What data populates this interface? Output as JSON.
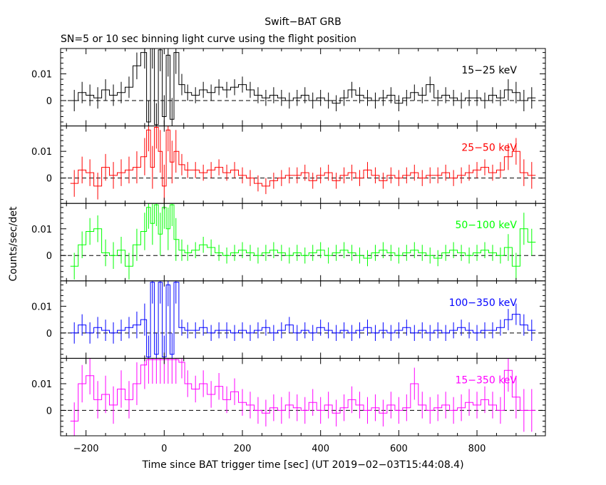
{
  "title": "Swift−BAT GRB",
  "subtitle": "SN=5 or 10 sec binning light curve using the flight position",
  "xlabel": "Time since BAT trigger time [sec] (UT 2019−02−03T15:44:08.4)",
  "ylabel": "Counts/sec/det",
  "chart_data": {
    "type": "line",
    "x_range": [
      -265,
      975
    ],
    "y_range": [
      -0.0095,
      0.0195
    ],
    "x_ticks": [
      -200,
      0,
      200,
      400,
      600,
      800
    ],
    "x_tick_labels": [
      "−200",
      "0",
      "200",
      "400",
      "600",
      "800"
    ],
    "y_ticks": [
      0,
      0.01
    ],
    "y_tick_labels": [
      "0",
      "0.01"
    ],
    "zero_line": "dashed",
    "grid": false,
    "panels": [
      {
        "name": "15−25 keV",
        "color": "#000000",
        "x": [
          -230,
          -210,
          -190,
          -170,
          -150,
          -130,
          -110,
          -90,
          -70,
          -50,
          -40,
          -30,
          -20,
          -10,
          0,
          10,
          20,
          30,
          45,
          60,
          80,
          100,
          120,
          140,
          160,
          180,
          200,
          220,
          240,
          260,
          280,
          300,
          320,
          340,
          360,
          380,
          400,
          420,
          440,
          460,
          480,
          500,
          520,
          540,
          560,
          580,
          600,
          620,
          640,
          660,
          680,
          700,
          720,
          740,
          760,
          780,
          800,
          820,
          840,
          860,
          880,
          900,
          920,
          940
        ],
        "y": [
          0.0,
          0.003,
          0.002,
          0.001,
          0.004,
          0.002,
          0.003,
          0.005,
          0.013,
          0.018,
          -0.008,
          0.02,
          -0.009,
          0.019,
          -0.006,
          0.017,
          -0.007,
          0.018,
          0.006,
          0.003,
          0.002,
          0.004,
          0.003,
          0.005,
          0.004,
          0.005,
          0.006,
          0.004,
          0.002,
          0.001,
          0.002,
          0.001,
          0.0,
          0.001,
          0.002,
          0.0,
          0.001,
          0.0,
          -0.001,
          0.001,
          0.004,
          0.002,
          0.001,
          0.0,
          0.001,
          0.002,
          -0.001,
          0.001,
          0.003,
          0.002,
          0.006,
          0.001,
          0.002,
          0.001,
          0.0,
          0.001,
          0.001,
          0.0,
          0.002,
          0.001,
          0.004,
          0.003,
          0.0,
          0.001
        ],
        "err": [
          0.004,
          0.004,
          0.004,
          0.004,
          0.004,
          0.004,
          0.004,
          0.004,
          0.005,
          0.006,
          0.008,
          0.008,
          0.008,
          0.008,
          0.008,
          0.008,
          0.008,
          0.008,
          0.004,
          0.003,
          0.003,
          0.003,
          0.003,
          0.003,
          0.003,
          0.003,
          0.003,
          0.003,
          0.003,
          0.003,
          0.003,
          0.003,
          0.003,
          0.003,
          0.003,
          0.003,
          0.003,
          0.003,
          0.003,
          0.003,
          0.003,
          0.003,
          0.003,
          0.003,
          0.003,
          0.003,
          0.003,
          0.003,
          0.003,
          0.003,
          0.003,
          0.003,
          0.003,
          0.003,
          0.003,
          0.003,
          0.003,
          0.003,
          0.003,
          0.003,
          0.004,
          0.004,
          0.004,
          0.004
        ]
      },
      {
        "name": "25−50 keV",
        "color": "#ff0000",
        "x": [
          -230,
          -210,
          -190,
          -170,
          -150,
          -130,
          -110,
          -90,
          -70,
          -50,
          -40,
          -30,
          -20,
          -10,
          0,
          10,
          20,
          30,
          45,
          60,
          80,
          100,
          120,
          140,
          160,
          180,
          200,
          220,
          240,
          260,
          280,
          300,
          320,
          340,
          360,
          380,
          400,
          420,
          440,
          460,
          480,
          500,
          520,
          540,
          560,
          580,
          600,
          620,
          640,
          660,
          680,
          700,
          720,
          740,
          760,
          780,
          800,
          820,
          840,
          860,
          880,
          900,
          920,
          940
        ],
        "y": [
          -0.002,
          0.003,
          0.002,
          -0.003,
          0.004,
          0.001,
          0.002,
          0.003,
          0.004,
          0.008,
          0.018,
          0.004,
          0.019,
          0.01,
          -0.003,
          0.018,
          0.006,
          0.01,
          0.005,
          0.003,
          0.003,
          0.002,
          0.003,
          0.004,
          0.002,
          0.003,
          0.001,
          0.0,
          -0.002,
          -0.003,
          -0.001,
          0.0,
          0.001,
          0.001,
          0.002,
          -0.001,
          0.001,
          0.002,
          -0.001,
          0.001,
          0.002,
          0.0,
          0.003,
          0.001,
          -0.001,
          0.001,
          0.0,
          0.001,
          0.002,
          0.0,
          0.001,
          0.001,
          0.002,
          0.0,
          0.001,
          0.002,
          0.003,
          0.004,
          0.002,
          0.003,
          0.008,
          0.01,
          0.002,
          0.001
        ],
        "err": [
          0.005,
          0.005,
          0.005,
          0.005,
          0.005,
          0.005,
          0.005,
          0.005,
          0.006,
          0.007,
          0.008,
          0.008,
          0.008,
          0.008,
          0.008,
          0.008,
          0.008,
          0.008,
          0.004,
          0.003,
          0.003,
          0.003,
          0.003,
          0.003,
          0.003,
          0.003,
          0.003,
          0.003,
          0.003,
          0.003,
          0.003,
          0.003,
          0.003,
          0.003,
          0.003,
          0.003,
          0.003,
          0.003,
          0.003,
          0.003,
          0.003,
          0.003,
          0.003,
          0.003,
          0.003,
          0.003,
          0.003,
          0.003,
          0.003,
          0.003,
          0.003,
          0.003,
          0.003,
          0.003,
          0.003,
          0.003,
          0.003,
          0.003,
          0.003,
          0.003,
          0.005,
          0.005,
          0.005,
          0.005
        ]
      },
      {
        "name": "50−100 keV",
        "color": "#00ff00",
        "x": [
          -230,
          -210,
          -190,
          -170,
          -150,
          -130,
          -110,
          -90,
          -70,
          -50,
          -40,
          -30,
          -20,
          -10,
          0,
          10,
          20,
          30,
          45,
          60,
          80,
          100,
          120,
          140,
          160,
          180,
          200,
          220,
          240,
          260,
          280,
          300,
          320,
          340,
          360,
          380,
          400,
          420,
          440,
          460,
          480,
          500,
          520,
          540,
          560,
          580,
          600,
          620,
          640,
          660,
          680,
          700,
          720,
          740,
          760,
          780,
          800,
          820,
          840,
          860,
          880,
          900,
          920,
          940
        ],
        "y": [
          -0.004,
          0.004,
          0.009,
          0.01,
          0.001,
          0.0,
          0.002,
          -0.004,
          0.004,
          0.009,
          0.018,
          0.012,
          0.019,
          0.008,
          0.018,
          0.01,
          0.019,
          0.006,
          0.002,
          0.001,
          0.002,
          0.004,
          0.003,
          0.001,
          0.0,
          0.001,
          0.002,
          0.001,
          0.0,
          0.001,
          0.002,
          0.001,
          0.0,
          0.001,
          0.0,
          0.001,
          0.002,
          0.0,
          0.001,
          0.002,
          0.001,
          0.0,
          -0.001,
          0.001,
          0.002,
          0.001,
          0.0,
          0.001,
          0.002,
          0.001,
          0.0,
          -0.001,
          0.001,
          0.002,
          0.001,
          0.0,
          0.001,
          0.002,
          0.001,
          0.0,
          0.003,
          -0.004,
          0.01,
          0.005
        ],
        "err": [
          0.005,
          0.005,
          0.005,
          0.005,
          0.005,
          0.005,
          0.005,
          0.005,
          0.006,
          0.007,
          0.008,
          0.008,
          0.008,
          0.008,
          0.008,
          0.008,
          0.008,
          0.008,
          0.004,
          0.003,
          0.003,
          0.003,
          0.003,
          0.003,
          0.003,
          0.003,
          0.003,
          0.003,
          0.003,
          0.003,
          0.003,
          0.003,
          0.003,
          0.003,
          0.003,
          0.003,
          0.003,
          0.003,
          0.003,
          0.003,
          0.003,
          0.003,
          0.003,
          0.003,
          0.003,
          0.003,
          0.003,
          0.003,
          0.003,
          0.003,
          0.003,
          0.003,
          0.003,
          0.003,
          0.003,
          0.003,
          0.003,
          0.003,
          0.003,
          0.003,
          0.005,
          0.005,
          0.006,
          0.005
        ]
      },
      {
        "name": "100−350 keV",
        "color": "#0000ff",
        "x": [
          -230,
          -210,
          -190,
          -170,
          -150,
          -130,
          -110,
          -90,
          -70,
          -50,
          -40,
          -30,
          -20,
          -10,
          0,
          10,
          20,
          30,
          45,
          60,
          80,
          100,
          120,
          140,
          160,
          180,
          200,
          220,
          240,
          260,
          280,
          300,
          320,
          340,
          360,
          380,
          400,
          420,
          440,
          460,
          480,
          500,
          520,
          540,
          560,
          580,
          600,
          620,
          640,
          660,
          680,
          700,
          720,
          740,
          760,
          780,
          800,
          820,
          840,
          860,
          880,
          900,
          920,
          940
        ],
        "y": [
          0.0,
          0.003,
          0.0,
          0.002,
          0.001,
          0.0,
          0.001,
          0.002,
          0.003,
          0.005,
          -0.009,
          0.019,
          -0.008,
          0.019,
          -0.009,
          0.018,
          -0.008,
          0.019,
          0.002,
          0.001,
          0.001,
          0.002,
          0.0,
          0.001,
          0.001,
          0.0,
          0.001,
          0.0,
          0.001,
          0.002,
          0.0,
          0.001,
          0.003,
          0.0,
          0.001,
          0.0,
          0.002,
          0.001,
          0.0,
          0.001,
          0.0,
          0.001,
          0.002,
          0.0,
          0.001,
          0.0,
          0.001,
          0.002,
          0.0,
          0.001,
          0.0,
          0.001,
          0.0,
          0.001,
          0.002,
          0.001,
          0.0,
          0.001,
          0.001,
          0.002,
          0.005,
          0.007,
          0.003,
          0.001
        ],
        "err": [
          0.004,
          0.004,
          0.004,
          0.004,
          0.004,
          0.004,
          0.004,
          0.004,
          0.005,
          0.006,
          0.008,
          0.008,
          0.008,
          0.008,
          0.008,
          0.008,
          0.008,
          0.008,
          0.003,
          0.003,
          0.003,
          0.003,
          0.003,
          0.003,
          0.003,
          0.003,
          0.003,
          0.003,
          0.003,
          0.003,
          0.003,
          0.003,
          0.003,
          0.003,
          0.003,
          0.003,
          0.003,
          0.003,
          0.003,
          0.003,
          0.003,
          0.003,
          0.003,
          0.003,
          0.003,
          0.003,
          0.003,
          0.003,
          0.003,
          0.003,
          0.003,
          0.003,
          0.003,
          0.003,
          0.003,
          0.003,
          0.003,
          0.003,
          0.003,
          0.003,
          0.004,
          0.004,
          0.004,
          0.004
        ]
      },
      {
        "name": "15−350 keV",
        "color": "#ff00ff",
        "x": [
          -230,
          -210,
          -190,
          -170,
          -150,
          -130,
          -110,
          -90,
          -70,
          -50,
          -40,
          -30,
          -20,
          -10,
          0,
          10,
          20,
          30,
          45,
          60,
          80,
          100,
          120,
          140,
          160,
          180,
          200,
          220,
          240,
          260,
          280,
          300,
          320,
          340,
          360,
          380,
          400,
          420,
          440,
          460,
          480,
          500,
          520,
          540,
          560,
          580,
          600,
          620,
          640,
          660,
          680,
          700,
          720,
          740,
          760,
          780,
          800,
          820,
          840,
          860,
          880,
          900,
          920,
          940
        ],
        "y": [
          -0.004,
          0.01,
          0.013,
          0.004,
          0.006,
          0.002,
          0.008,
          0.004,
          0.01,
          0.017,
          0.019,
          0.019,
          0.019,
          0.019,
          0.019,
          0.019,
          0.019,
          0.019,
          0.018,
          0.01,
          0.008,
          0.01,
          0.006,
          0.009,
          0.004,
          0.007,
          0.003,
          0.002,
          0.0,
          -0.001,
          0.001,
          0.0,
          0.002,
          0.001,
          0.0,
          0.003,
          0.0,
          0.002,
          -0.001,
          0.001,
          0.004,
          0.002,
          0.0,
          0.001,
          -0.001,
          0.002,
          0.0,
          0.001,
          0.01,
          0.002,
          0.0,
          0.001,
          0.002,
          0.0,
          0.001,
          0.003,
          0.002,
          0.004,
          0.002,
          0.0,
          0.015,
          0.005,
          0.0,
          0.0
        ],
        "err": [
          0.007,
          0.007,
          0.007,
          0.007,
          0.007,
          0.007,
          0.007,
          0.007,
          0.008,
          0.009,
          0.009,
          0.009,
          0.009,
          0.009,
          0.009,
          0.009,
          0.009,
          0.009,
          0.006,
          0.005,
          0.005,
          0.005,
          0.005,
          0.005,
          0.005,
          0.005,
          0.005,
          0.005,
          0.005,
          0.005,
          0.005,
          0.005,
          0.005,
          0.005,
          0.005,
          0.005,
          0.005,
          0.005,
          0.005,
          0.005,
          0.005,
          0.005,
          0.005,
          0.005,
          0.005,
          0.005,
          0.005,
          0.005,
          0.006,
          0.005,
          0.005,
          0.005,
          0.005,
          0.005,
          0.005,
          0.005,
          0.005,
          0.005,
          0.005,
          0.005,
          0.008,
          0.008,
          0.008,
          0.008
        ]
      }
    ]
  }
}
